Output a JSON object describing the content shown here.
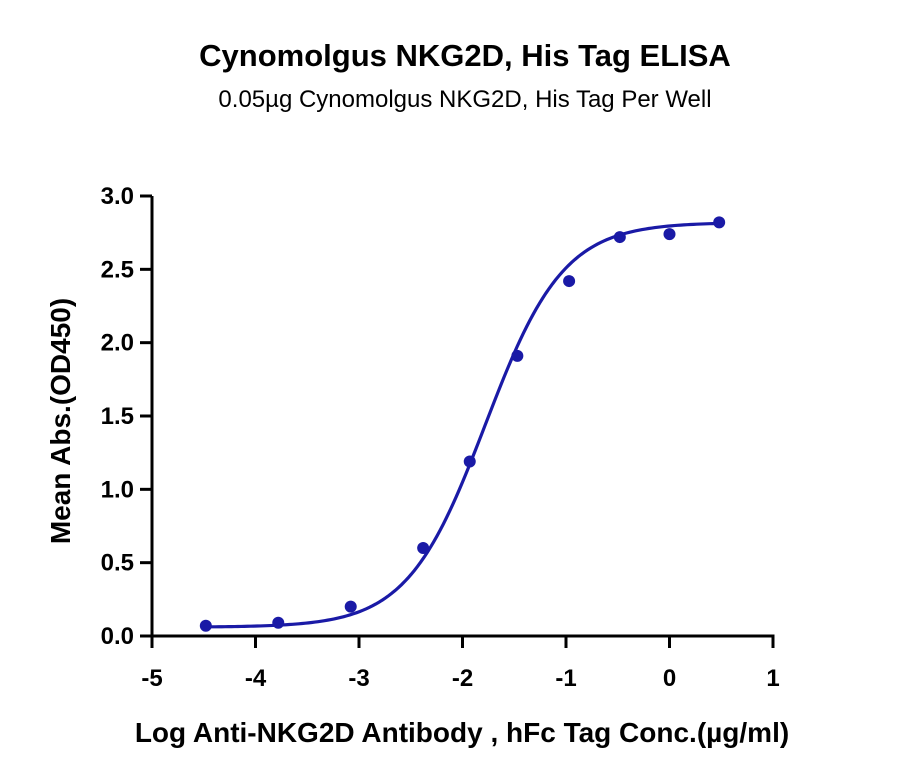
{
  "chart_data": {
    "type": "scatter",
    "title": "Cynomolgus NKG2D, His Tag ELISA",
    "subtitle": "0.05µg Cynomolgus NKG2D, His Tag Per Well",
    "xlabel": "Log Anti-NKG2D Antibody , hFc Tag Conc.(µg/ml)",
    "ylabel": "Mean Abs.(OD450)",
    "xlim": [
      -5,
      1
    ],
    "ylim": [
      0,
      3.0
    ],
    "x_ticks": [
      -5,
      -4,
      -3,
      -2,
      -1,
      0,
      1
    ],
    "x_tick_labels": [
      "-5",
      "-4",
      "-3",
      "-2",
      "-1",
      "0",
      "1"
    ],
    "y_ticks": [
      0,
      0.5,
      1.0,
      1.5,
      2.0,
      2.5,
      3.0
    ],
    "y_tick_labels": [
      "0.0",
      "0.5",
      "1.0",
      "1.5",
      "2.0",
      "2.5",
      "3.0"
    ],
    "grid": false,
    "legend": "none",
    "color": "#1a1aa6",
    "series": [
      {
        "x": [
          -4.48,
          -3.78,
          -3.08,
          -2.38,
          -1.93,
          -1.47,
          -0.97,
          -0.48,
          0.0,
          0.48
        ],
        "y": [
          0.07,
          0.09,
          0.2,
          0.6,
          1.19,
          1.91,
          2.42,
          2.72,
          2.74,
          2.82
        ],
        "fit_curve": "4PL",
        "fit_params": {
          "bottom": 0.06,
          "top": 2.82,
          "ec50_log": -1.78,
          "hill": 1.15
        }
      }
    ]
  }
}
